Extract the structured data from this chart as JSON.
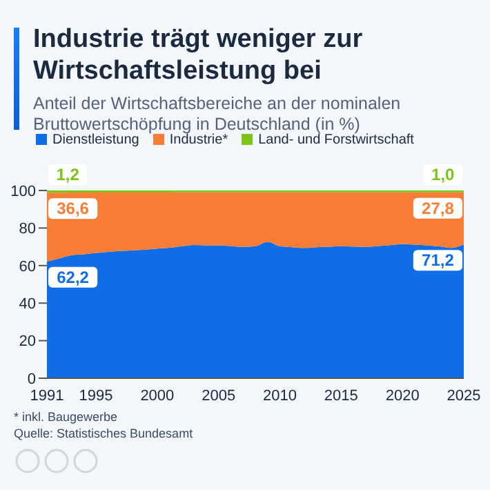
{
  "chart_data": {
    "type": "area",
    "title": "Industrie trägt weniger zur Wirtschaftsleistung bei",
    "subtitle": "Anteil der Wirtschaftsbereiche an der nominalen Bruttowertschöpfung in Deutschland (in %)",
    "x": [
      1991,
      1992,
      1993,
      1994,
      1995,
      1996,
      1997,
      1998,
      1999,
      2000,
      2001,
      2002,
      2003,
      2004,
      2005,
      2006,
      2007,
      2008,
      2009,
      2010,
      2011,
      2012,
      2013,
      2014,
      2015,
      2016,
      2017,
      2018,
      2019,
      2020,
      2021,
      2022,
      2023,
      2024,
      2025
    ],
    "stacked": true,
    "series": [
      {
        "name": "Dienstleistung",
        "color": "#0f6ee6",
        "values": [
          62.2,
          63.8,
          65.5,
          66.0,
          66.7,
          67.3,
          67.8,
          68.1,
          68.5,
          69.0,
          69.5,
          70.3,
          71.0,
          70.8,
          70.8,
          70.4,
          69.9,
          70.3,
          72.6,
          70.3,
          69.8,
          69.4,
          69.8,
          70.0,
          70.3,
          70.1,
          69.9,
          70.4,
          70.9,
          71.5,
          71.1,
          70.8,
          70.2,
          69.4,
          71.2
        ],
        "value_labels": [
          "62,2",
          null,
          null,
          null,
          null,
          null,
          null,
          null,
          null,
          null,
          null,
          null,
          null,
          null,
          null,
          null,
          null,
          null,
          null,
          null,
          null,
          null,
          null,
          null,
          null,
          null,
          null,
          null,
          null,
          null,
          null,
          null,
          null,
          null,
          "71,2"
        ]
      },
      {
        "name": "Industrie*",
        "color": "#fa7d37",
        "values": [
          36.6,
          35.0,
          33.4,
          32.9,
          32.2,
          31.6,
          31.1,
          30.8,
          30.4,
          29.9,
          29.4,
          28.7,
          28.0,
          28.2,
          28.2,
          28.6,
          29.1,
          28.7,
          26.4,
          28.7,
          29.2,
          29.6,
          29.2,
          29.0,
          28.7,
          28.9,
          29.1,
          28.6,
          28.1,
          27.5,
          27.9,
          28.2,
          28.8,
          29.6,
          27.8
        ],
        "value_labels": [
          "36,6",
          null,
          null,
          null,
          null,
          null,
          null,
          null,
          null,
          null,
          null,
          null,
          null,
          null,
          null,
          null,
          null,
          null,
          null,
          null,
          null,
          null,
          null,
          null,
          null,
          null,
          null,
          null,
          null,
          null,
          null,
          null,
          null,
          null,
          "27,8"
        ]
      },
      {
        "name": "Land- und Forstwirtschaft",
        "color": "#7cc418",
        "values": [
          1.2,
          1.2,
          1.1,
          1.1,
          1.1,
          1.1,
          1.1,
          1.1,
          1.1,
          1.1,
          1.1,
          1.0,
          1.0,
          1.0,
          1.0,
          1.0,
          1.0,
          1.0,
          1.0,
          1.0,
          1.0,
          1.0,
          1.0,
          1.0,
          1.0,
          1.0,
          1.0,
          1.0,
          1.0,
          1.0,
          1.0,
          1.0,
          1.0,
          1.0,
          1.0
        ],
        "value_labels": [
          "1,2",
          null,
          null,
          null,
          null,
          null,
          null,
          null,
          null,
          null,
          null,
          null,
          null,
          null,
          null,
          null,
          null,
          null,
          null,
          null,
          null,
          null,
          null,
          null,
          null,
          null,
          null,
          null,
          null,
          null,
          null,
          null,
          null,
          null,
          "1,0"
        ]
      }
    ],
    "xlim": [
      1991,
      2025
    ],
    "xticks": [
      1991,
      1995,
      2000,
      2005,
      2010,
      2015,
      2020,
      2025
    ],
    "ylim": [
      0,
      100
    ],
    "yticks": [
      0,
      20,
      40,
      60,
      80,
      100
    ],
    "legend": "top",
    "annotations": [
      "* inkl. Baugewerbe",
      "Quelle: Statistisches Bundesamt"
    ]
  }
}
